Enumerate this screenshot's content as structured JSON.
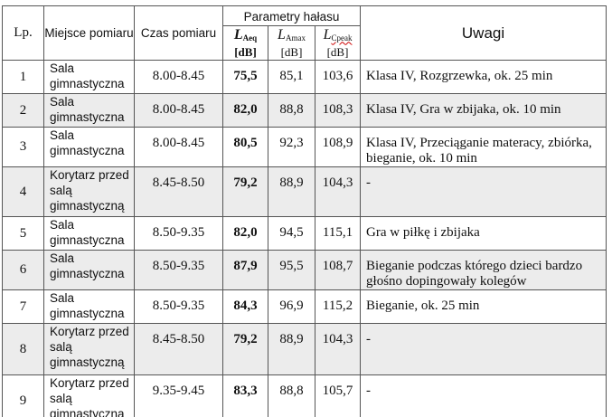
{
  "header": {
    "lp": "Lp.",
    "miejsce": "Miejsce pomiaru",
    "czas": "Czas pomiaru",
    "parametry": "Parametry hałasu",
    "laeq_sym": "L",
    "laeq_sub": "Aeq",
    "lamax_sym": "L",
    "lamax_sub": "Amax",
    "lcpeak_sym": "L",
    "lcpeak_sub": "Cpeak",
    "unit": "[dB]",
    "uwagi": "Uwagi"
  },
  "rows": [
    {
      "lp": "1",
      "place": "Sala gimnastyczna",
      "time": "8.00-8.45",
      "laeq": "75,5",
      "lamax": "85,1",
      "lcpeak": "103,6",
      "note": "Klasa IV, Rozgrzewka, ok. 25 min"
    },
    {
      "lp": "2",
      "place": "Sala gimnastyczna",
      "time": "8.00-8.45",
      "laeq": "82,0",
      "lamax": "88,8",
      "lcpeak": "108,3",
      "note": "Klasa IV, Gra w zbijaka, ok. 10 min"
    },
    {
      "lp": "3",
      "place": "Sala gimnastyczna",
      "time": "8.00-8.45",
      "laeq": "80,5",
      "lamax": "92,3",
      "lcpeak": "108,9",
      "note": "Klasa IV, Przeciąganie materacy, zbiórka, bieganie, ok. 10 min"
    },
    {
      "lp": "4",
      "place": "Korytarz przed salą gimnastyczną",
      "time": "8.45-8.50",
      "laeq": "79,2",
      "lamax": "88,9",
      "lcpeak": "104,3",
      "note": "-"
    },
    {
      "lp": "5",
      "place": "Sala gimnastyczna",
      "time": "8.50-9.35",
      "laeq": "82,0",
      "lamax": "94,5",
      "lcpeak": "115,1",
      "note": "Gra w piłkę i zbijaka"
    },
    {
      "lp": "6",
      "place": "Sala gimnastyczna",
      "time": "8.50-9.35",
      "laeq": "87,9",
      "lamax": "95,5",
      "lcpeak": "108,7",
      "note": "Bieganie podczas którego dzieci bardzo głośno dopingowały kolegów"
    },
    {
      "lp": "7",
      "place": "Sala gimnastyczna",
      "time": "8.50-9.35",
      "laeq": "84,3",
      "lamax": "96,9",
      "lcpeak": "115,2",
      "note": "Bieganie, ok. 25 min"
    },
    {
      "lp": "8",
      "place": "Korytarz przed salą gimnastyczną",
      "time": "8.45-8.50",
      "laeq": "79,2",
      "lamax": "88,9",
      "lcpeak": "104,3",
      "note": "-"
    },
    {
      "lp": "9",
      "place": "Korytarz przed salą gimnastyczną",
      "time": "9.35-9.45",
      "laeq": "83,3",
      "lamax": "88,8",
      "lcpeak": "105,7",
      "note": "-"
    }
  ],
  "shaded_rows": [
    2,
    4,
    6,
    8
  ]
}
